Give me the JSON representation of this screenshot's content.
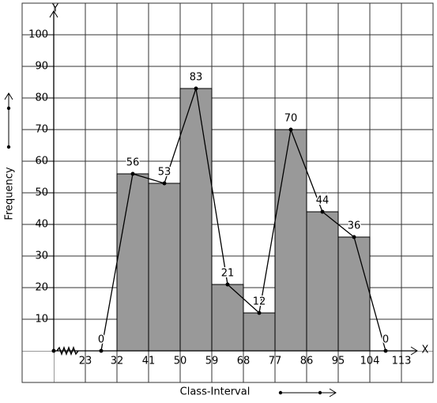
{
  "chart_data": {
    "type": "histogram",
    "x_label": "Class-Interval",
    "y_label": "Frequency",
    "x_axis_name": "X",
    "y_axis_name": "Y",
    "bins": [
      32,
      41,
      50,
      59,
      68,
      77,
      86,
      95,
      104
    ],
    "values": [
      56,
      53,
      83,
      21,
      12,
      70,
      44,
      36
    ],
    "color": "#999999",
    "polygon": {
      "x": [
        27.5,
        36.5,
        45.5,
        54.5,
        63.5,
        72.5,
        81.5,
        90.5,
        99.5,
        108.5
      ],
      "values": [
        0,
        56,
        53,
        83,
        21,
        12,
        70,
        44,
        36,
        0
      ],
      "color": "#000000"
    },
    "xlim": [
      14,
      122
    ],
    "ylim": [
      0,
      110
    ],
    "xticks": [
      23,
      32,
      41,
      50,
      59,
      68,
      77,
      86,
      95,
      104,
      113
    ],
    "yticks": [
      10,
      20,
      30,
      40,
      50,
      60,
      70,
      80,
      90,
      100
    ],
    "grid": true
  }
}
